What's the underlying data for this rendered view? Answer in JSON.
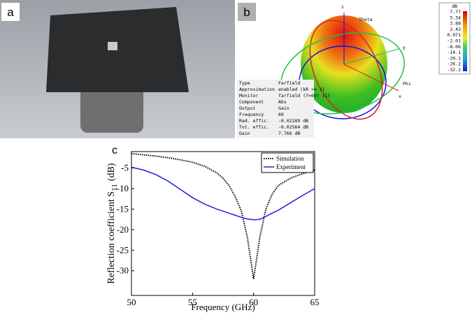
{
  "panels": {
    "a": "a",
    "b": "b",
    "c": "c"
  },
  "farfield": {
    "colorbar_unit": "dB",
    "colorbar": [
      "7.77",
      "5.34",
      "3.88",
      "2.43",
      "0.971",
      "-2.01",
      "-8.06",
      "-14.1",
      "-20.1",
      "-26.2",
      "-32.2"
    ],
    "axes": {
      "z": "z",
      "y": "y",
      "x": "x",
      "theta": "Theta",
      "phi": "Phi"
    },
    "rows": [
      [
        "Type",
        "Farfield"
      ],
      [
        "Approximation",
        "enabled (kR >> 1)"
      ],
      [
        "Monitor",
        "farfield (f=60) [1]"
      ],
      [
        "Component",
        "Abs"
      ],
      [
        "Output",
        "Gain"
      ],
      [
        "Frequency",
        "60"
      ],
      [
        "Rad. effic.",
        "-0.02289 dB"
      ],
      [
        "Tot. effic.",
        "-0.02564 dB"
      ],
      [
        "Gain",
        "7.766 dB"
      ]
    ]
  },
  "chart_data": {
    "type": "line",
    "xlabel": "Frequency (GHz)",
    "ylabel": "Reflection coefficient S",
    "ylabel_sub": "11",
    "ylabel_unit": "(dB)",
    "x": [
      50,
      51,
      52,
      53,
      54,
      55,
      56,
      57,
      57.5,
      58,
      58.5,
      59,
      59.5,
      60,
      60.5,
      61,
      61.5,
      62,
      63,
      64,
      65
    ],
    "series": [
      {
        "name": "Simulation",
        "color": "#000000",
        "dash": true,
        "values": [
          -1.5,
          -1.8,
          -2.1,
          -2.5,
          -3.0,
          -3.6,
          -4.6,
          -6.2,
          -7.5,
          -9.3,
          -12,
          -15.5,
          -22,
          -32,
          -22,
          -15,
          -11.5,
          -9.3,
          -7.5,
          -6.4,
          -5.5
        ]
      },
      {
        "name": "Experiment",
        "color": "#1f1fe0",
        "dash": false,
        "values": [
          -4.8,
          -5.5,
          -6.6,
          -8.2,
          -10.2,
          -12.2,
          -13.8,
          -15.0,
          -15.5,
          -16.0,
          -16.5,
          -17.0,
          -17.4,
          -17.6,
          -17.5,
          -16.8,
          -16.0,
          -15.3,
          -13.5,
          -11.7,
          -10
        ]
      }
    ],
    "xlim": [
      50,
      65
    ],
    "xticks": [
      50,
      55,
      60,
      65
    ],
    "ylim": [
      -36,
      -1
    ],
    "yticks": [
      -5,
      -10,
      -15,
      -20,
      -25,
      -30
    ],
    "legend": "top-right"
  }
}
